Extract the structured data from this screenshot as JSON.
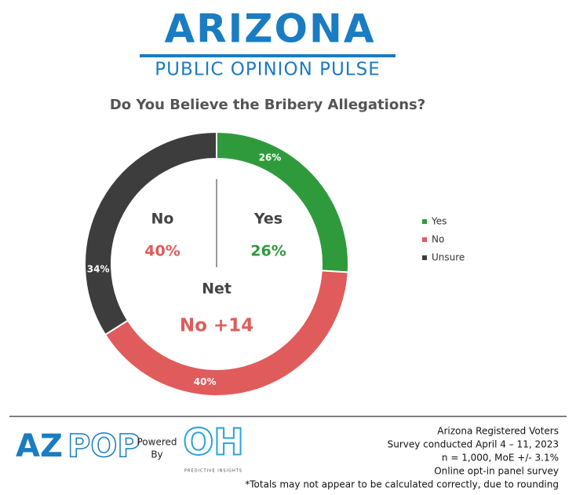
{
  "header": {
    "brand": "ARIZONA",
    "subtitle": "PUBLIC OPINION PULSE"
  },
  "chart_data": {
    "type": "donut",
    "title": "Do You Believe the Bribery Allegations?",
    "categories": [
      "Yes",
      "No",
      "Unsure"
    ],
    "values": [
      26,
      40,
      34
    ],
    "value_labels": [
      "26%",
      "40%",
      "34%"
    ],
    "colors": [
      "#2f9a3c",
      "#e05b5b",
      "#3d3d3d"
    ],
    "legend": "right",
    "annotations": {
      "no_label": "No",
      "no_value": "40%",
      "yes_label": "Yes",
      "yes_value": "26%",
      "net_label": "Net",
      "net_value": "No +14"
    }
  },
  "footer": {
    "logo_left": "AZ",
    "logo_right": "POP",
    "powered": "Powered",
    "by": "By",
    "oh_logo": "OH",
    "oh_tagline": "PREDICTIVE INSIGHTS",
    "notes": [
      "Arizona Registered Voters",
      "Survey conducted April 4 – 11, 2023",
      "n = 1,000, MoE +/- 3.1%",
      "Online opt-in panel survey",
      "*Totals may not appear to be calculated correctly, due to rounding"
    ]
  }
}
